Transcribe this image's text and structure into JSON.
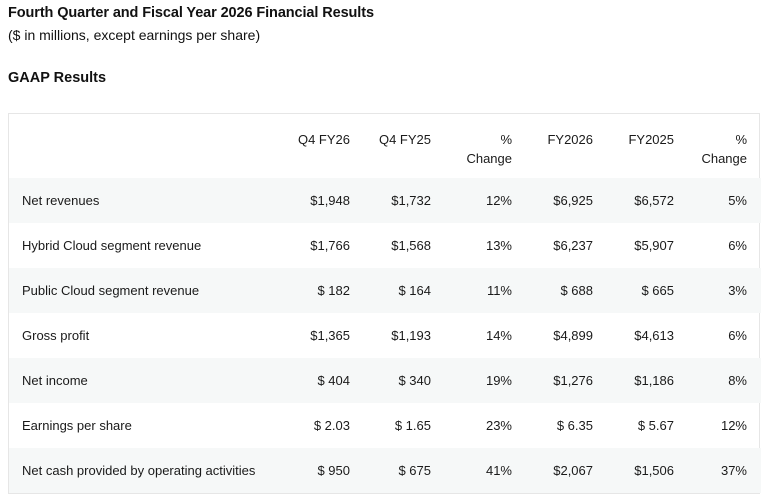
{
  "header": {
    "title": "Fourth Quarter and Fiscal Year 2026 Financial Results",
    "subtitle": "($ in millions, except earnings per share)",
    "section": "GAAP Results"
  },
  "table": {
    "columns": [
      {
        "line1": "",
        "line2": ""
      },
      {
        "line1": "Q4 FY26",
        "line2": ""
      },
      {
        "line1": "Q4 FY25",
        "line2": ""
      },
      {
        "line1": "%",
        "line2": "Change"
      },
      {
        "line1": "FY2026",
        "line2": ""
      },
      {
        "line1": "FY2025",
        "line2": ""
      },
      {
        "line1": "%",
        "line2": "Change"
      }
    ],
    "rows": [
      [
        "Net revenues",
        "$1,948",
        "$1,732",
        "12%",
        "$6,925",
        "$6,572",
        "5%"
      ],
      [
        "Hybrid Cloud segment revenue",
        "$1,766",
        "$1,568",
        "13%",
        "$6,237",
        "$5,907",
        "6%"
      ],
      [
        "Public Cloud segment revenue",
        "$ 182",
        "$ 164",
        "11%",
        "$ 688",
        "$ 665",
        "3%"
      ],
      [
        "Gross profit",
        "$1,365",
        "$1,193",
        "14%",
        "$4,899",
        "$4,613",
        "6%"
      ],
      [
        "Net income",
        "$ 404",
        "$ 340",
        "19%",
        "$1,276",
        "$1,186",
        "8%"
      ],
      [
        "Earnings per share",
        "$ 2.03",
        "$ 1.65",
        "23%",
        "$ 6.35",
        "$ 5.67",
        "12%"
      ],
      [
        "Net cash provided by operating activities",
        "$ 950",
        "$ 675",
        "41%",
        "$2,067",
        "$1,506",
        "37%"
      ]
    ]
  }
}
